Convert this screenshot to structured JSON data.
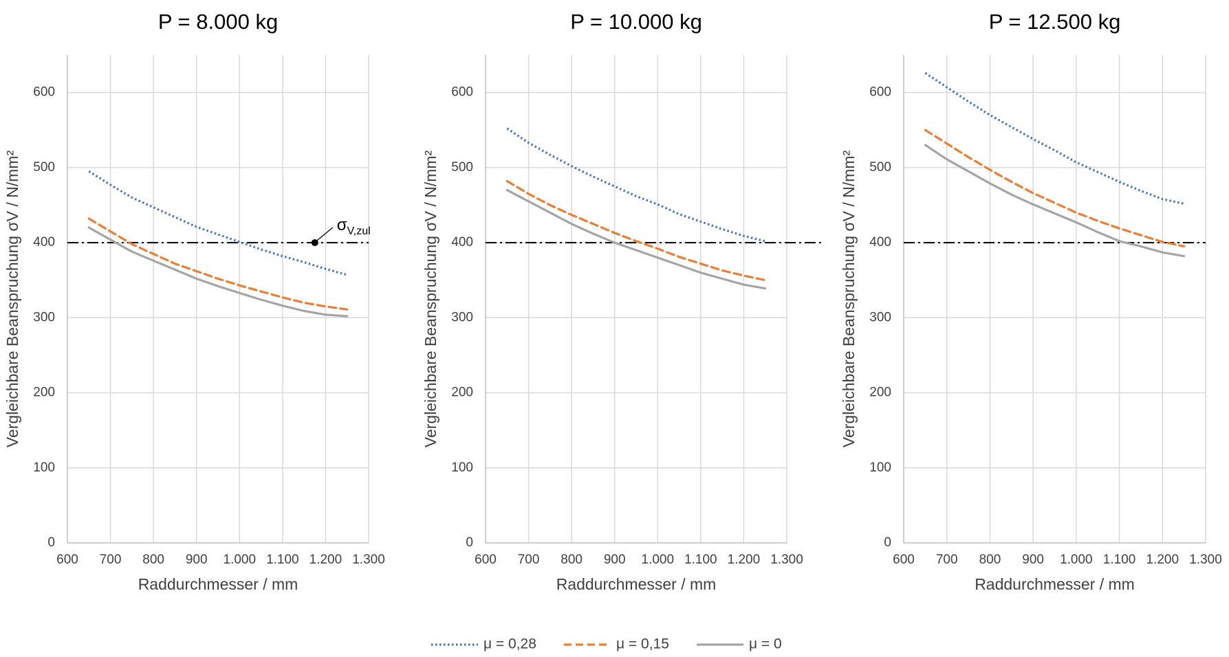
{
  "figure": {
    "legend_position": "bottom-center",
    "colors": {
      "mu_028": "#4472C4",
      "mu_015": "#ED7D31",
      "mu_0": "#A5A5A5",
      "reference": "#000000",
      "grid": "#D9D9D9",
      "text": "#404040"
    }
  },
  "chart_data": [
    {
      "type": "line",
      "title": "P = 8.000 kg",
      "xlabel": "Raddurchmesser / mm",
      "ylabel": "Vergleichbare Beanspruchung σV / N/mm²",
      "xlim": [
        600,
        1300
      ],
      "ylim": [
        0,
        650
      ],
      "xticks": [
        600,
        700,
        800,
        900,
        1000,
        1100,
        1200,
        1300
      ],
      "xtick_labels": [
        "600",
        "700",
        "800",
        "900",
        "1.000",
        "1.100",
        "1.200",
        "1.300"
      ],
      "yticks": [
        0,
        100,
        200,
        300,
        400,
        500,
        600
      ],
      "ytick_labels": [
        "0",
        "100",
        "200",
        "300",
        "400",
        "500",
        "600"
      ],
      "grid": true,
      "x": [
        650,
        700,
        750,
        800,
        850,
        900,
        950,
        1000,
        1050,
        1100,
        1150,
        1200,
        1250
      ],
      "series": [
        {
          "name": "μ = 0,28",
          "style": "dotted",
          "color": "#4472C4",
          "values": [
            495,
            477,
            460,
            447,
            434,
            421,
            411,
            401,
            391,
            382,
            374,
            365,
            357
          ]
        },
        {
          "name": "μ = 0,15",
          "style": "dashed",
          "color": "#ED7D31",
          "values": [
            432,
            415,
            398,
            385,
            372,
            362,
            352,
            343,
            335,
            327,
            320,
            315,
            311
          ]
        },
        {
          "name": "μ = 0",
          "style": "solid",
          "color": "#A5A5A5",
          "values": [
            420,
            404,
            388,
            376,
            364,
            352,
            342,
            333,
            324,
            316,
            309,
            304,
            302
          ]
        }
      ],
      "reference_line": {
        "y": 400,
        "style": "dash-dot",
        "color": "#000000"
      },
      "annotation": {
        "text": "σ",
        "subscript": "V,zul",
        "x": 1175,
        "y": 400
      }
    },
    {
      "type": "line",
      "title": "P = 10.000 kg",
      "xlabel": "Raddurchmesser / mm",
      "ylabel": "Vergleichbare Beanspruchung σV / N/mm²",
      "xlim": [
        600,
        1300
      ],
      "ylim": [
        0,
        650
      ],
      "xticks": [
        600,
        700,
        800,
        900,
        1000,
        1100,
        1200,
        1300
      ],
      "xtick_labels": [
        "600",
        "700",
        "800",
        "900",
        "1.000",
        "1.100",
        "1.200",
        "1.300"
      ],
      "yticks": [
        0,
        100,
        200,
        300,
        400,
        500,
        600
      ],
      "ytick_labels": [
        "0",
        "100",
        "200",
        "300",
        "400",
        "500",
        "600"
      ],
      "grid": true,
      "x": [
        650,
        700,
        750,
        800,
        850,
        900,
        950,
        1000,
        1050,
        1100,
        1150,
        1200,
        1250
      ],
      "series": [
        {
          "name": "μ = 0,28",
          "style": "dotted",
          "color": "#4472C4",
          "values": [
            552,
            533,
            517,
            502,
            488,
            475,
            462,
            451,
            438,
            428,
            418,
            409,
            402
          ]
        },
        {
          "name": "μ = 0,15",
          "style": "dashed",
          "color": "#ED7D31",
          "values": [
            482,
            465,
            450,
            437,
            425,
            413,
            402,
            392,
            381,
            372,
            363,
            356,
            350
          ]
        },
        {
          "name": "μ = 0",
          "style": "solid",
          "color": "#A5A5A5",
          "values": [
            470,
            455,
            440,
            425,
            412,
            400,
            390,
            380,
            370,
            360,
            352,
            344,
            339
          ]
        }
      ],
      "reference_line": {
        "y": 400,
        "style": "dash-dot",
        "color": "#000000"
      }
    },
    {
      "type": "line",
      "title": "P = 12.500 kg",
      "xlabel": "Raddurchmesser / mm",
      "ylabel": "Vergleichbare Beanspruchung σV / N/mm²",
      "xlim": [
        600,
        1300
      ],
      "ylim": [
        0,
        650
      ],
      "xticks": [
        600,
        700,
        800,
        900,
        1000,
        1100,
        1200,
        1300
      ],
      "xtick_labels": [
        "600",
        "700",
        "800",
        "900",
        "1.000",
        "1.100",
        "1.200",
        "1.300"
      ],
      "yticks": [
        0,
        100,
        200,
        300,
        400,
        500,
        600
      ],
      "ytick_labels": [
        "0",
        "100",
        "200",
        "300",
        "400",
        "500",
        "600"
      ],
      "grid": true,
      "x": [
        650,
        700,
        750,
        800,
        850,
        900,
        950,
        1000,
        1050,
        1100,
        1150,
        1200,
        1250
      ],
      "series": [
        {
          "name": "μ = 0,28",
          "style": "dotted",
          "color": "#4472C4",
          "values": [
            626,
            607,
            588,
            570,
            554,
            538,
            523,
            507,
            494,
            481,
            469,
            458,
            452
          ]
        },
        {
          "name": "μ = 0,15",
          "style": "dashed",
          "color": "#ED7D31",
          "values": [
            550,
            532,
            514,
            497,
            481,
            466,
            453,
            440,
            429,
            419,
            410,
            401,
            395
          ]
        },
        {
          "name": "μ = 0",
          "style": "solid",
          "color": "#A5A5A5",
          "values": [
            530,
            511,
            495,
            479,
            464,
            451,
            439,
            427,
            414,
            402,
            395,
            387,
            382
          ]
        }
      ],
      "reference_line": {
        "y": 400,
        "style": "dash-dot",
        "color": "#000000"
      }
    }
  ],
  "legend": [
    {
      "label": "μ = 0,28",
      "style": "dotted",
      "color": "#4472C4"
    },
    {
      "label": "μ = 0,15",
      "style": "dashed",
      "color": "#ED7D31"
    },
    {
      "label": "μ = 0",
      "style": "solid",
      "color": "#A5A5A5"
    }
  ]
}
